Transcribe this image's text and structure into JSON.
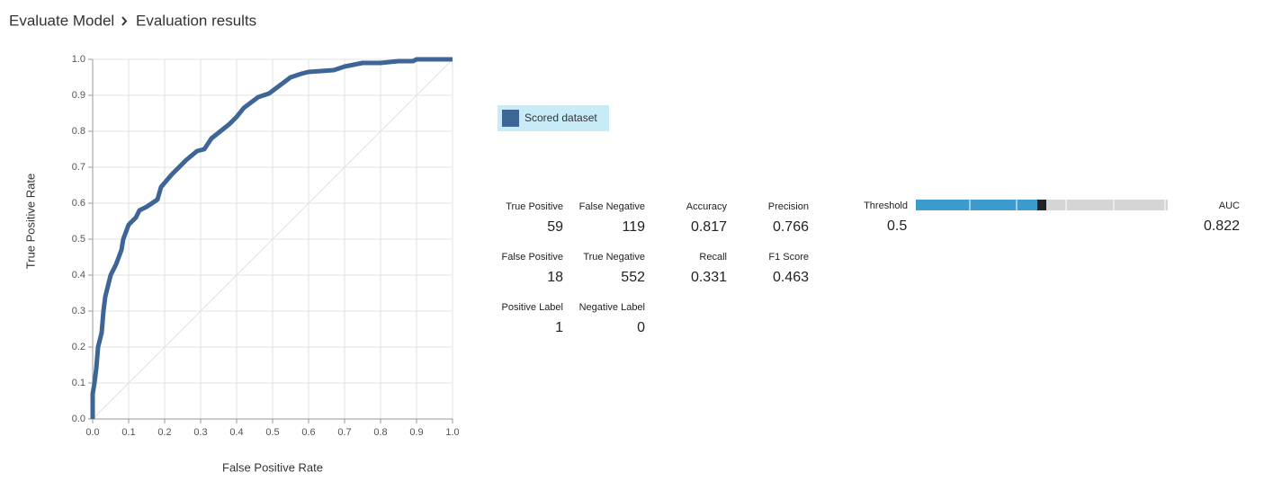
{
  "breadcrumb": [
    "Evaluate Model",
    "Evaluation results"
  ],
  "chart_data": {
    "type": "line",
    "xlabel": "False Positive Rate",
    "ylabel": "True Positive Rate",
    "x": [
      0,
      0,
      0.005,
      0.01,
      0.015,
      0.025,
      0.03,
      0.035,
      0.05,
      0.065,
      0.08,
      0.085,
      0.1,
      0.12,
      0.13,
      0.15,
      0.18,
      0.19,
      0.22,
      0.26,
      0.29,
      0.31,
      0.33,
      0.38,
      0.4,
      0.42,
      0.44,
      0.46,
      0.49,
      0.51,
      0.55,
      0.58,
      0.6,
      0.67,
      0.7,
      0.75,
      0.8,
      0.85,
      0.89,
      0.9,
      1
    ],
    "series": [
      {
        "name": "Scored dataset",
        "color": "#3d6595",
        "values": [
          0,
          0.07,
          0.1,
          0.14,
          0.2,
          0.24,
          0.3,
          0.34,
          0.4,
          0.43,
          0.47,
          0.5,
          0.54,
          0.56,
          0.58,
          0.59,
          0.61,
          0.645,
          0.68,
          0.72,
          0.745,
          0.75,
          0.78,
          0.82,
          0.84,
          0.865,
          0.88,
          0.895,
          0.905,
          0.92,
          0.95,
          0.96,
          0.965,
          0.97,
          0.98,
          0.99,
          0.99,
          0.995,
          0.995,
          1,
          1
        ]
      }
    ],
    "xlim": [
      0,
      1
    ],
    "ylim": [
      0,
      1
    ],
    "xticks": [
      {
        "value": 0,
        "label": "0.0"
      },
      0.1,
      0.2,
      0.3,
      0.4,
      0.5,
      0.6,
      0.7,
      0.8,
      0.9,
      {
        "value": 1,
        "label": "1.0"
      }
    ],
    "yticks": [
      {
        "value": 0,
        "label": "0.0"
      },
      0.1,
      0.2,
      0.3,
      0.4,
      0.5,
      0.6,
      0.7,
      0.8,
      0.9,
      {
        "value": 1,
        "label": "1.0"
      }
    ],
    "grid": true
  },
  "metrics": [
    [
      {
        "label": "True Positive",
        "value": 59
      },
      {
        "label": "False Negative",
        "value": 119
      },
      {
        "label": "Accuracy",
        "value": 0.817
      },
      {
        "label": "Precision",
        "value": 0.766
      }
    ],
    [
      {
        "label": "False Positive",
        "value": 18
      },
      {
        "label": "True Negative",
        "value": 552
      },
      {
        "label": "Recall",
        "value": 0.331
      },
      {
        "label": "F1 Score",
        "value": 0.463
      }
    ],
    [
      {
        "label": "Positive Label",
        "value": 1
      },
      {
        "label": "Negative Label",
        "value": 0
      }
    ]
  ],
  "threshold": {
    "label": "Threshold",
    "value": 0.5
  },
  "auc": {
    "label": "AUC",
    "value": 0.822
  }
}
